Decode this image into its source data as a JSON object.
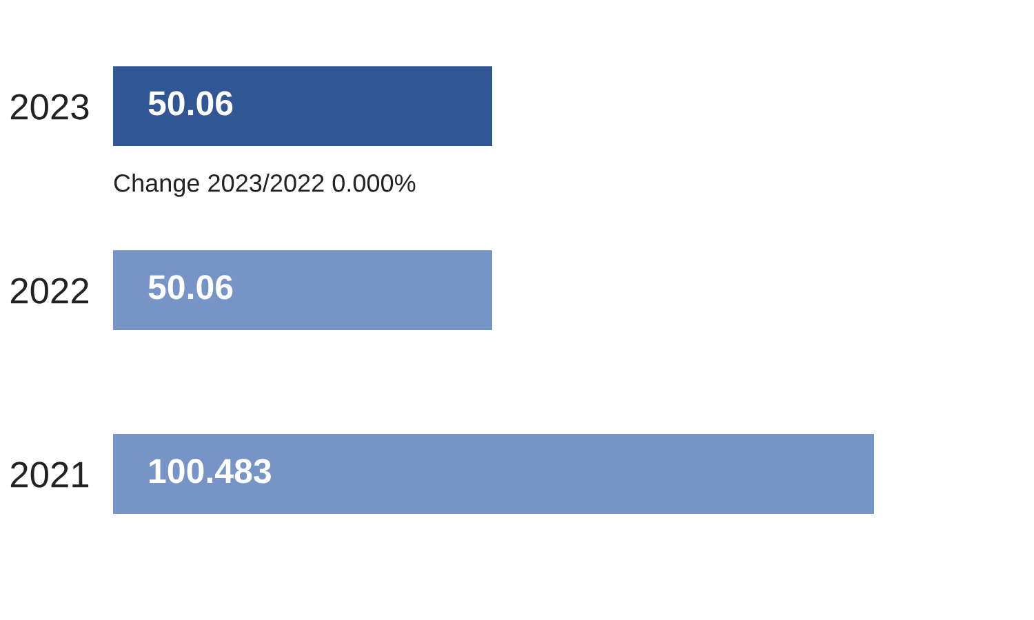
{
  "chart_data": {
    "type": "bar",
    "orientation": "horizontal",
    "categories": [
      "2023",
      "2022",
      "2021"
    ],
    "values": [
      50.06,
      50.06,
      100.483
    ],
    "colors": [
      "#305694",
      "#7694c6",
      "#7694c6"
    ],
    "data_labels": true,
    "annotations": [
      "Change 2023/2022 0.000%"
    ]
  }
}
